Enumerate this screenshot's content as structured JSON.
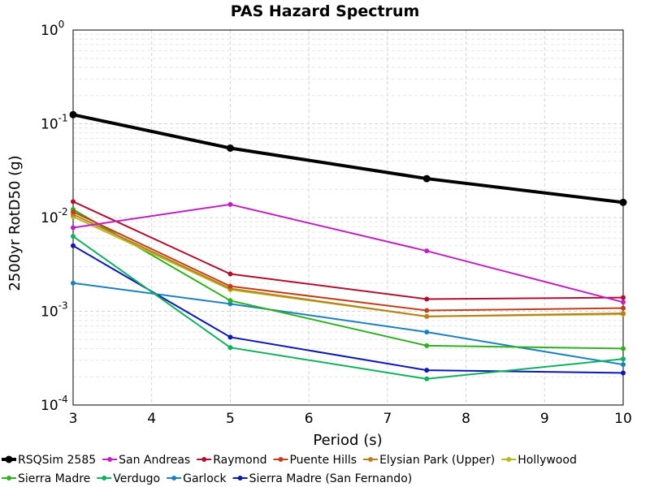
{
  "chart_data": {
    "type": "line",
    "title": "PAS Hazard Spectrum",
    "xlabel": "Period (s)",
    "ylabel": "2500yr RotD50 (g)",
    "x_ticks": [
      3,
      4,
      5,
      6,
      7,
      8,
      9,
      10
    ],
    "y_scale": "log",
    "xlim": [
      3,
      10
    ],
    "ylim": [
      0.0001,
      1
    ],
    "y_ticks": [
      {
        "base": "10",
        "exp": "0"
      },
      {
        "base": "10",
        "exp": "-1"
      },
      {
        "base": "10",
        "exp": "-2"
      },
      {
        "base": "10",
        "exp": "-3"
      },
      {
        "base": "10",
        "exp": "-4"
      }
    ],
    "grid": true,
    "legend_placement": "bottom",
    "x": [
      3,
      5,
      7.5,
      10
    ],
    "series": [
      {
        "name": "RSQSim 2585",
        "color": "#000000",
        "bold": true,
        "values": [
          0.125,
          0.055,
          0.026,
          0.0145
        ]
      },
      {
        "name": "San Andreas",
        "color": "#c020c0",
        "values": [
          0.0078,
          0.0138,
          0.0044,
          0.00125
        ]
      },
      {
        "name": "Raymond",
        "color": "#b01030",
        "values": [
          0.0148,
          0.0025,
          0.00135,
          0.0014
        ]
      },
      {
        "name": "Puente Hills",
        "color": "#c0401c",
        "values": [
          0.0115,
          0.00185,
          0.00102,
          0.00108
        ]
      },
      {
        "name": "Elysian Park (Upper)",
        "color": "#b8801c",
        "values": [
          0.0108,
          0.00175,
          0.00088,
          0.00095
        ]
      },
      {
        "name": "Hollywood",
        "color": "#b8b81c",
        "values": [
          0.0102,
          0.0017,
          0.00088,
          0.00093
        ]
      },
      {
        "name": "Sierra Madre",
        "color": "#30b020",
        "values": [
          0.0122,
          0.0013,
          0.00043,
          0.0004
        ]
      },
      {
        "name": "Verdugo",
        "color": "#10b060",
        "values": [
          0.0063,
          0.00041,
          0.00019,
          0.00031
        ]
      },
      {
        "name": "Garlock",
        "color": "#1c80c0",
        "values": [
          0.002,
          0.0012,
          0.0006,
          0.00027
        ]
      },
      {
        "name": "Sierra Madre (San Fernando)",
        "color": "#0c18b0",
        "values": [
          0.005,
          0.00053,
          0.000235,
          0.00022
        ]
      }
    ]
  }
}
